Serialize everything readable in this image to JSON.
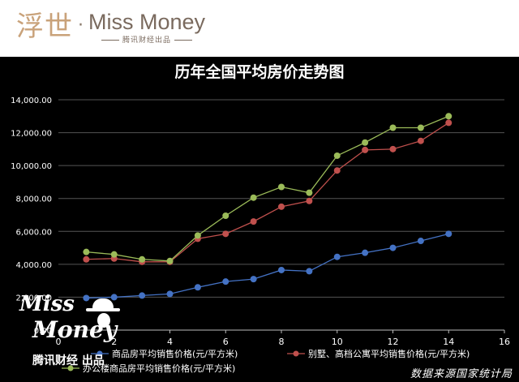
{
  "brand": {
    "name_cn": "浮世",
    "name_en": "Miss Money",
    "tagline": "腾讯财经出品"
  },
  "watermark": {
    "miss": "Miss",
    "money": "Money",
    "credit": "腾讯财经 出品"
  },
  "source_note": "数据来源国家统计局",
  "chart_data": {
    "type": "line",
    "title": "历年全国平均房价走势图",
    "xlabel": "",
    "ylabel": "",
    "xlim": [
      0,
      16
    ],
    "ylim": [
      0,
      14000
    ],
    "x_ticks": [
      0,
      2,
      4,
      6,
      8,
      10,
      12,
      14,
      16
    ],
    "y_ticks": [
      0,
      2000,
      4000,
      6000,
      8000,
      10000,
      12000,
      14000
    ],
    "y_tick_labels": [
      "0.00",
      "2,000.00",
      "4,000.00",
      "6,000.00",
      "8,000.00",
      "10,000.00",
      "12,000.00",
      "14,000.00"
    ],
    "grid": {
      "horizontal": true,
      "vertical": false
    },
    "legend_position": "bottom",
    "x": [
      1,
      2,
      3,
      4,
      5,
      6,
      7,
      8,
      9,
      10,
      11,
      12,
      13,
      14
    ],
    "series": [
      {
        "name": "商品房平均销售价格(元/平方米)",
        "color": "#4472c4",
        "values": [
          1950,
          2000,
          2100,
          2200,
          2600,
          2950,
          3100,
          3650,
          3580,
          4450,
          4700,
          5000,
          5420,
          5850
        ]
      },
      {
        "name": "别墅、高档公寓平均销售价格(元/平方米)",
        "color": "#c0504d",
        "values": [
          4300,
          4350,
          4150,
          4150,
          5550,
          5850,
          6600,
          7500,
          7850,
          9700,
          10950,
          11000,
          11500,
          12600
        ]
      },
      {
        "name": "办公楼商品房平均销售价格(元/平方米)",
        "color": "#9bbb59",
        "values": [
          4750,
          4600,
          4300,
          4200,
          5750,
          6950,
          8050,
          8700,
          8350,
          10600,
          11400,
          12300,
          12300,
          13000
        ]
      }
    ]
  }
}
